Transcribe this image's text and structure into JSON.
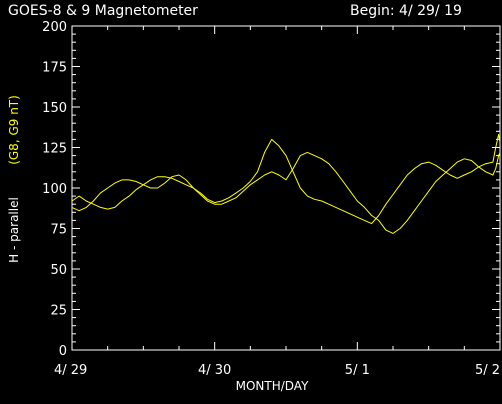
{
  "header": {
    "title": "GOES-8 & 9 Magnetometer",
    "begin_label": "Begin: 4/ 29/ 19"
  },
  "chart_data": {
    "type": "line",
    "title": "GOES-8 & 9 Magnetometer",
    "xlabel": "MONTH/DAY",
    "ylabel": "H - parallel",
    "ylabel_series": "(G8, G9 nT)",
    "ylim": [
      0,
      200
    ],
    "xlim": [
      0,
      3
    ],
    "yticks": [
      0,
      25,
      50,
      75,
      100,
      125,
      150,
      175,
      200
    ],
    "xticks": [
      {
        "value": 0,
        "label": "4/ 29"
      },
      {
        "value": 1,
        "label": "4/ 30"
      },
      {
        "value": 2,
        "label": "5/ 1"
      },
      {
        "value": 3,
        "label": "5/ 2"
      }
    ],
    "grid": false,
    "colors": {
      "background": "#000000",
      "axes": "#ffffff",
      "series": "#ffff00"
    },
    "series": [
      {
        "x": [
          0.0,
          0.05,
          0.1,
          0.15,
          0.2,
          0.25,
          0.3,
          0.35,
          0.4,
          0.45,
          0.5,
          0.55,
          0.6,
          0.65,
          0.7,
          0.75,
          0.8,
          0.85,
          0.9,
          0.95,
          1.0,
          1.05,
          1.1,
          1.15,
          1.2,
          1.25,
          1.3,
          1.35,
          1.4,
          1.45,
          1.5,
          1.55,
          1.6,
          1.65,
          1.7,
          1.75,
          1.8,
          1.85,
          1.9,
          1.95,
          2.0,
          2.05,
          2.1,
          2.15,
          2.2,
          2.25,
          2.3,
          2.35,
          2.4,
          2.45,
          2.5,
          2.55,
          2.6,
          2.65,
          2.7,
          2.75,
          2.8,
          2.85,
          2.9,
          2.95,
          2.97,
          2.99,
          3.0
        ],
        "values": [
          92,
          95,
          92,
          90,
          88,
          87,
          88,
          92,
          95,
          99,
          102,
          105,
          107,
          107,
          106,
          104,
          102,
          100,
          97,
          93,
          91,
          92,
          94,
          97,
          100,
          104,
          110,
          122,
          130,
          126,
          120,
          110,
          100,
          95,
          93,
          92,
          90,
          88,
          86,
          84,
          82,
          80,
          78,
          83,
          90,
          96,
          102,
          108,
          112,
          115,
          116,
          114,
          111,
          108,
          106,
          108,
          110,
          113,
          115,
          116,
          125,
          133,
          128
        ]
      },
      {
        "x": [
          0.0,
          0.05,
          0.1,
          0.15,
          0.2,
          0.25,
          0.3,
          0.35,
          0.4,
          0.45,
          0.5,
          0.55,
          0.6,
          0.65,
          0.7,
          0.75,
          0.8,
          0.85,
          0.9,
          0.95,
          1.0,
          1.05,
          1.1,
          1.15,
          1.2,
          1.25,
          1.3,
          1.35,
          1.4,
          1.45,
          1.5,
          1.55,
          1.6,
          1.65,
          1.7,
          1.75,
          1.8,
          1.85,
          1.9,
          1.95,
          2.0,
          2.05,
          2.1,
          2.15,
          2.2,
          2.25,
          2.3,
          2.35,
          2.4,
          2.45,
          2.5,
          2.55,
          2.6,
          2.65,
          2.7,
          2.75,
          2.8,
          2.85,
          2.9,
          2.95,
          2.97,
          2.99,
          3.0
        ],
        "values": [
          88,
          86,
          88,
          92,
          97,
          100,
          103,
          105,
          105,
          104,
          102,
          100,
          100,
          103,
          107,
          108,
          105,
          100,
          96,
          92,
          90,
          90,
          92,
          94,
          98,
          102,
          105,
          108,
          110,
          108,
          105,
          112,
          120,
          122,
          120,
          118,
          115,
          110,
          104,
          98,
          92,
          88,
          83,
          80,
          74,
          72,
          75,
          80,
          86,
          92,
          98,
          104,
          108,
          112,
          116,
          118,
          117,
          113,
          110,
          108,
          112,
          120,
          122
        ]
      }
    ]
  }
}
